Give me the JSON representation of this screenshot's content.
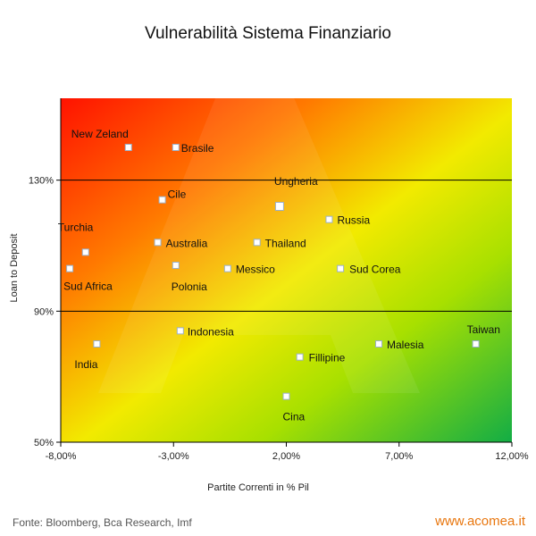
{
  "chart_data": {
    "type": "scatter",
    "title": "Vulnerabilità Sistema Finanziario",
    "xlabel": "Partite Correnti in % Pil",
    "ylabel": "Loan to Deposit",
    "xlim": [
      -8,
      12
    ],
    "ylim": [
      50,
      155
    ],
    "x_ticks": [
      -8,
      -3,
      2,
      7,
      12
    ],
    "x_tick_labels": [
      "-8,00%",
      "-3,00%",
      "2,00%",
      "7,00%",
      "12,00%"
    ],
    "y_ticks": [
      50,
      90,
      130
    ],
    "y_tick_labels": [
      "50%",
      "90%",
      "130%"
    ],
    "reference_lines_y": [
      90,
      130
    ],
    "background": "gradient red (top-left) to yellow to green (bottom-right)",
    "points": [
      {
        "label": "New Zeland",
        "x": -5.0,
        "y": 140.0
      },
      {
        "label": "Brasile",
        "x": -2.9,
        "y": 140.0
      },
      {
        "label": "Cile",
        "x": -3.5,
        "y": 124.0
      },
      {
        "label": "Ungheria",
        "x": 1.7,
        "y": 122.0
      },
      {
        "label": "Russia",
        "x": 3.9,
        "y": 118.0
      },
      {
        "label": "Turchia",
        "x": -6.9,
        "y": 108.0
      },
      {
        "label": "Australia",
        "x": -3.7,
        "y": 111.0
      },
      {
        "label": "Thailand",
        "x": 0.7,
        "y": 111.0
      },
      {
        "label": "Sud Africa",
        "x": -7.6,
        "y": 103.0
      },
      {
        "label": "Polonia",
        "x": -2.9,
        "y": 104.0
      },
      {
        "label": "Messico",
        "x": -0.6,
        "y": 103.0
      },
      {
        "label": "Sud Corea",
        "x": 4.4,
        "y": 103.0
      },
      {
        "label": "Indonesia",
        "x": -2.7,
        "y": 84.0
      },
      {
        "label": "India",
        "x": -6.4,
        "y": 80.0
      },
      {
        "label": "Malesia",
        "x": 6.1,
        "y": 80.0
      },
      {
        "label": "Taiwan",
        "x": 10.4,
        "y": 80.0
      },
      {
        "label": "Fillipine",
        "x": 2.6,
        "y": 76.0
      },
      {
        "label": "Cina",
        "x": 2.0,
        "y": 64.0
      }
    ]
  },
  "footer": {
    "source": "Fonte: Bloomberg, Bca Research, Imf",
    "site": "www.acomea.it"
  },
  "colors": {
    "gradient_red": "#ff1a00",
    "gradient_yellow": "#f5f500",
    "gradient_green": "#1db04a",
    "brand_orange": "#e8760e"
  }
}
